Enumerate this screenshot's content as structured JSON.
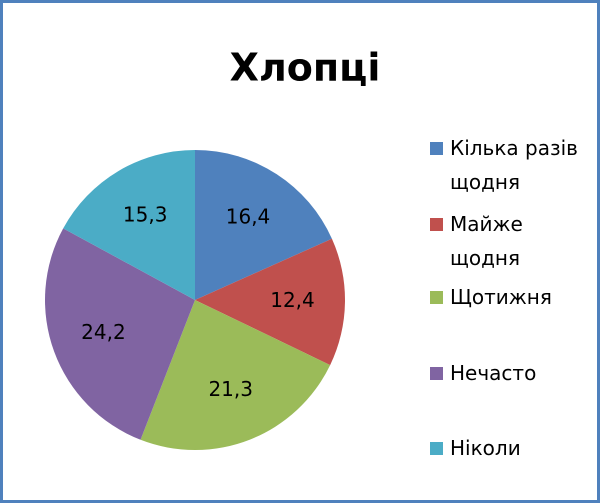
{
  "chart_data": {
    "type": "pie",
    "title": "Хлопці",
    "categories": [
      "Кілька разів щодня",
      "Майже щодня",
      "Щотижня",
      "Нечасто",
      "Ніколи"
    ],
    "values": [
      16.4,
      12.4,
      21.3,
      24.2,
      15.3
    ],
    "value_labels": [
      "16,4",
      "12,4",
      "21,3",
      "24,2",
      "15,3"
    ],
    "colors": [
      "#4f81bd",
      "#c0504d",
      "#9bbb59",
      "#8064a2",
      "#4bacc6"
    ],
    "legend": "right"
  }
}
